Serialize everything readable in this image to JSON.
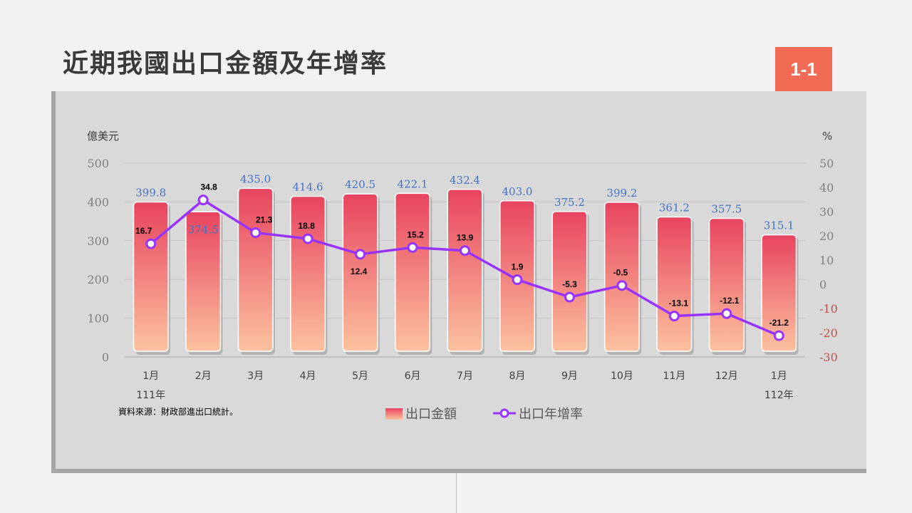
{
  "slide": {
    "title": "近期我國出口金額及年增率",
    "badge": "1-1",
    "source": "資料來源：財政部進出口統計。"
  },
  "chart_data": {
    "type": "bar+line",
    "categories": [
      "1月",
      "2月",
      "3月",
      "4月",
      "5月",
      "6月",
      "7月",
      "8月",
      "9月",
      "10月",
      "11月",
      "12月",
      "1月"
    ],
    "year_labels": [
      {
        "index": 0,
        "label": "111年"
      },
      {
        "index": 12,
        "label": "112年"
      }
    ],
    "left_axis": {
      "unit": "億美元",
      "ylim": [
        0,
        500
      ],
      "ticks": [
        0,
        100,
        200,
        300,
        400,
        500
      ]
    },
    "right_axis": {
      "unit": "%",
      "ylim": [
        -30,
        50
      ],
      "ticks": [
        50,
        40,
        30,
        20,
        10,
        0,
        -10,
        -20,
        -30
      ]
    },
    "series": [
      {
        "name": "出口金額",
        "type": "bar",
        "axis": "left",
        "values": [
          399.8,
          374.5,
          435.0,
          414.6,
          420.5,
          422.1,
          432.4,
          403.0,
          375.2,
          399.2,
          361.2,
          357.5,
          315.1
        ],
        "labels": [
          "399.8",
          "374.5",
          "435.0",
          "414.6",
          "420.5",
          "422.1",
          "432.4",
          "403.0",
          "375.2",
          "399.2",
          "361.2",
          "357.5",
          "315.1"
        ],
        "color_top": "#e8445f",
        "color_bottom": "#fcc29f"
      },
      {
        "name": "出口年增率",
        "type": "line",
        "axis": "right",
        "values": [
          16.7,
          34.8,
          21.3,
          18.8,
          12.4,
          15.2,
          13.9,
          1.9,
          -5.3,
          -0.5,
          -13.1,
          -12.1,
          -21.2
        ],
        "labels": [
          "16.7",
          "34.8",
          "21.3",
          "18.8",
          "12.4",
          "15.2",
          "13.9",
          "1.9",
          "-5.3",
          "-0.5",
          "-13.1",
          "-12.1",
          "-21.2"
        ],
        "color": "#9933ff"
      }
    ],
    "grid": true,
    "legend_position": "bottom"
  }
}
